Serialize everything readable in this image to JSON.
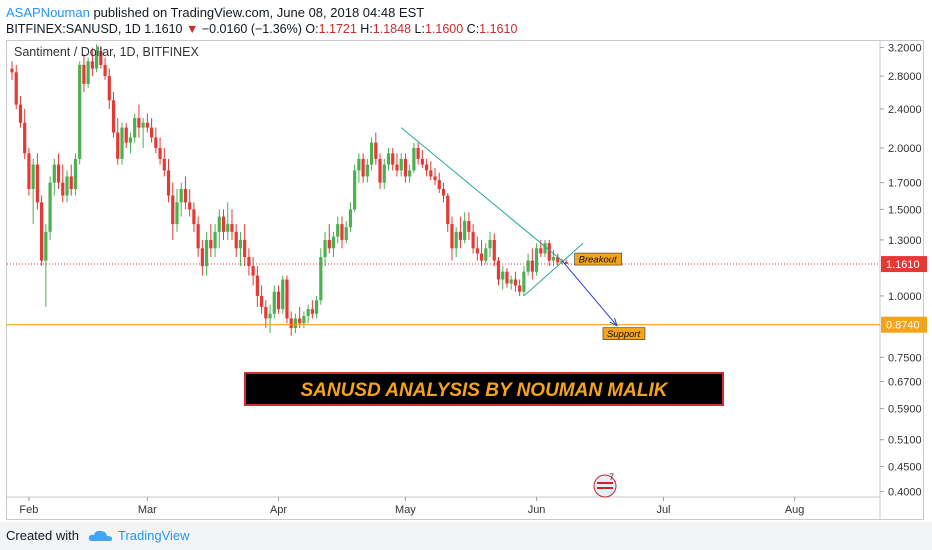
{
  "header": {
    "author": "ASAPNouman",
    "published": "published on TradingView.com, June 08, 2018 04:48 EST",
    "symbol": "BITFINEX:SANUSD, 1D",
    "last": "1.1610",
    "change": "−0.0160 (−1.36%)",
    "open_label": "O:",
    "open": "1.1721",
    "high_label": "H:",
    "high": "1.1848",
    "low_label": "L:",
    "low": "1.1600",
    "close_label": "C:",
    "close": "1.1610"
  },
  "footer": {
    "created_with": "Created with",
    "brand": "TradingView"
  },
  "colors": {
    "up": "#4caf50",
    "down": "#e53935",
    "trend": "#26a69a",
    "projection": "#2a3fd6",
    "support": "#f4a31c",
    "price_line": "#e53935",
    "banner_text": "#f4a31c",
    "banner_bg": "#000000",
    "banner_border": "#d32f2f"
  },
  "chart_data": {
    "type": "candlestick",
    "title": "Santiment / Dollar, 1D, BITFINEX",
    "y_scale": "log",
    "ylim": [
      0.39,
      3.3
    ],
    "y_ticks": [
      "3.2000",
      "2.8000",
      "2.4000",
      "2.0000",
      "1.7000",
      "1.5000",
      "1.3000",
      "1.1610",
      "1.0000",
      "0.8740",
      "0.7500",
      "0.6700",
      "0.5900",
      "0.5100",
      "0.4500",
      "0.4000"
    ],
    "x_ticks": [
      "Feb",
      "Mar",
      "Apr",
      "May",
      "Jun",
      "Jul",
      "Aug"
    ],
    "current_price": "1.1610",
    "support_level": "0.8740",
    "series": [
      {
        "date": "2018-01-28",
        "o": 2.9,
        "h": 3.0,
        "l": 2.75,
        "c": 2.85
      },
      {
        "date": "2018-01-29",
        "o": 2.85,
        "h": 2.95,
        "l": 2.4,
        "c": 2.45
      },
      {
        "date": "2018-01-30",
        "o": 2.45,
        "h": 2.55,
        "l": 2.2,
        "c": 2.25
      },
      {
        "date": "2018-01-31",
        "o": 2.25,
        "h": 2.4,
        "l": 1.9,
        "c": 1.95
      },
      {
        "date": "2018-02-01",
        "o": 1.95,
        "h": 2.0,
        "l": 1.6,
        "c": 1.65
      },
      {
        "date": "2018-02-02",
        "o": 1.65,
        "h": 1.9,
        "l": 1.4,
        "c": 1.85
      },
      {
        "date": "2018-02-03",
        "o": 1.85,
        "h": 1.95,
        "l": 1.5,
        "c": 1.55
      },
      {
        "date": "2018-02-04",
        "o": 1.55,
        "h": 1.6,
        "l": 1.15,
        "c": 1.18
      },
      {
        "date": "2018-02-05",
        "o": 1.18,
        "h": 1.4,
        "l": 0.95,
        "c": 1.35
      },
      {
        "date": "2018-02-06",
        "o": 1.35,
        "h": 1.75,
        "l": 1.3,
        "c": 1.7
      },
      {
        "date": "2018-02-07",
        "o": 1.7,
        "h": 1.9,
        "l": 1.6,
        "c": 1.85
      },
      {
        "date": "2018-02-08",
        "o": 1.85,
        "h": 1.95,
        "l": 1.65,
        "c": 1.7
      },
      {
        "date": "2018-02-09",
        "o": 1.7,
        "h": 1.85,
        "l": 1.55,
        "c": 1.6
      },
      {
        "date": "2018-02-10",
        "o": 1.6,
        "h": 1.8,
        "l": 1.55,
        "c": 1.75
      },
      {
        "date": "2018-02-11",
        "o": 1.75,
        "h": 1.85,
        "l": 1.6,
        "c": 1.65
      },
      {
        "date": "2018-02-12",
        "o": 1.65,
        "h": 1.95,
        "l": 1.6,
        "c": 1.9
      },
      {
        "date": "2018-02-13",
        "o": 1.9,
        "h": 3.0,
        "l": 1.85,
        "c": 2.95
      },
      {
        "date": "2018-02-14",
        "o": 2.95,
        "h": 3.1,
        "l": 2.6,
        "c": 2.7
      },
      {
        "date": "2018-02-15",
        "o": 2.7,
        "h": 3.05,
        "l": 2.65,
        "c": 3.0
      },
      {
        "date": "2018-02-16",
        "o": 3.0,
        "h": 3.2,
        "l": 2.8,
        "c": 2.9
      },
      {
        "date": "2018-02-17",
        "o": 2.9,
        "h": 3.25,
        "l": 2.85,
        "c": 3.15
      },
      {
        "date": "2018-02-18",
        "o": 3.15,
        "h": 3.2,
        "l": 2.9,
        "c": 2.95
      },
      {
        "date": "2018-02-19",
        "o": 2.95,
        "h": 3.05,
        "l": 2.75,
        "c": 2.8
      },
      {
        "date": "2018-02-20",
        "o": 2.8,
        "h": 2.9,
        "l": 2.4,
        "c": 2.5
      },
      {
        "date": "2018-02-21",
        "o": 2.5,
        "h": 2.6,
        "l": 2.1,
        "c": 2.15
      },
      {
        "date": "2018-02-22",
        "o": 2.15,
        "h": 2.3,
        "l": 1.85,
        "c": 1.9
      },
      {
        "date": "2018-02-23",
        "o": 1.9,
        "h": 2.25,
        "l": 1.85,
        "c": 2.2
      },
      {
        "date": "2018-02-24",
        "o": 2.2,
        "h": 2.25,
        "l": 2.0,
        "c": 2.05
      },
      {
        "date": "2018-02-25",
        "o": 2.05,
        "h": 2.15,
        "l": 1.95,
        "c": 2.1
      },
      {
        "date": "2018-02-26",
        "o": 2.1,
        "h": 2.35,
        "l": 2.05,
        "c": 2.3
      },
      {
        "date": "2018-02-27",
        "o": 2.3,
        "h": 2.45,
        "l": 2.1,
        "c": 2.2
      },
      {
        "date": "2018-02-28",
        "o": 2.2,
        "h": 2.3,
        "l": 2.0,
        "c": 2.25
      },
      {
        "date": "2018-03-01",
        "o": 2.25,
        "h": 2.35,
        "l": 2.15,
        "c": 2.2
      },
      {
        "date": "2018-03-02",
        "o": 2.2,
        "h": 2.3,
        "l": 2.05,
        "c": 2.1
      },
      {
        "date": "2018-03-03",
        "o": 2.1,
        "h": 2.2,
        "l": 1.95,
        "c": 2.0
      },
      {
        "date": "2018-03-04",
        "o": 2.0,
        "h": 2.1,
        "l": 1.85,
        "c": 1.9
      },
      {
        "date": "2018-03-05",
        "o": 1.9,
        "h": 2.0,
        "l": 1.75,
        "c": 1.8
      },
      {
        "date": "2018-03-06",
        "o": 1.8,
        "h": 1.9,
        "l": 1.55,
        "c": 1.6
      },
      {
        "date": "2018-03-07",
        "o": 1.6,
        "h": 1.7,
        "l": 1.3,
        "c": 1.4
      },
      {
        "date": "2018-03-08",
        "o": 1.4,
        "h": 1.65,
        "l": 1.35,
        "c": 1.55
      },
      {
        "date": "2018-03-09",
        "o": 1.55,
        "h": 1.7,
        "l": 1.45,
        "c": 1.65
      },
      {
        "date": "2018-03-10",
        "o": 1.65,
        "h": 1.75,
        "l": 1.5,
        "c": 1.55
      },
      {
        "date": "2018-03-11",
        "o": 1.55,
        "h": 1.65,
        "l": 1.45,
        "c": 1.5
      },
      {
        "date": "2018-03-12",
        "o": 1.5,
        "h": 1.55,
        "l": 1.35,
        "c": 1.4
      },
      {
        "date": "2018-03-13",
        "o": 1.4,
        "h": 1.45,
        "l": 1.2,
        "c": 1.25
      },
      {
        "date": "2018-03-14",
        "o": 1.25,
        "h": 1.3,
        "l": 1.1,
        "c": 1.15
      },
      {
        "date": "2018-03-15",
        "o": 1.15,
        "h": 1.35,
        "l": 1.1,
        "c": 1.3
      },
      {
        "date": "2018-03-16",
        "o": 1.3,
        "h": 1.4,
        "l": 1.2,
        "c": 1.25
      },
      {
        "date": "2018-03-17",
        "o": 1.25,
        "h": 1.4,
        "l": 1.2,
        "c": 1.35
      },
      {
        "date": "2018-03-18",
        "o": 1.35,
        "h": 1.5,
        "l": 1.25,
        "c": 1.45
      },
      {
        "date": "2018-03-19",
        "o": 1.45,
        "h": 1.5,
        "l": 1.3,
        "c": 1.35
      },
      {
        "date": "2018-03-20",
        "o": 1.35,
        "h": 1.55,
        "l": 1.3,
        "c": 1.4
      },
      {
        "date": "2018-03-21",
        "o": 1.4,
        "h": 1.5,
        "l": 1.3,
        "c": 1.35
      },
      {
        "date": "2018-03-22",
        "o": 1.35,
        "h": 1.4,
        "l": 1.2,
        "c": 1.25
      },
      {
        "date": "2018-03-23",
        "o": 1.25,
        "h": 1.35,
        "l": 1.15,
        "c": 1.3
      },
      {
        "date": "2018-03-24",
        "o": 1.3,
        "h": 1.4,
        "l": 1.15,
        "c": 1.2
      },
      {
        "date": "2018-03-25",
        "o": 1.2,
        "h": 1.25,
        "l": 1.1,
        "c": 1.15
      },
      {
        "date": "2018-03-26",
        "o": 1.15,
        "h": 1.2,
        "l": 1.05,
        "c": 1.1
      },
      {
        "date": "2018-03-27",
        "o": 1.1,
        "h": 1.15,
        "l": 0.95,
        "c": 1.0
      },
      {
        "date": "2018-03-28",
        "o": 1.0,
        "h": 1.05,
        "l": 0.92,
        "c": 0.95
      },
      {
        "date": "2018-03-29",
        "o": 0.95,
        "h": 0.98,
        "l": 0.86,
        "c": 0.9
      },
      {
        "date": "2018-03-30",
        "o": 0.9,
        "h": 0.96,
        "l": 0.84,
        "c": 0.92
      },
      {
        "date": "2018-03-31",
        "o": 0.92,
        "h": 1.05,
        "l": 0.9,
        "c": 1.02
      },
      {
        "date": "2018-04-01",
        "o": 1.02,
        "h": 1.05,
        "l": 0.92,
        "c": 0.94
      },
      {
        "date": "2018-04-02",
        "o": 0.94,
        "h": 1.1,
        "l": 0.92,
        "c": 1.08
      },
      {
        "date": "2018-04-03",
        "o": 1.08,
        "h": 1.1,
        "l": 0.88,
        "c": 0.9
      },
      {
        "date": "2018-04-04",
        "o": 0.9,
        "h": 0.93,
        "l": 0.83,
        "c": 0.86
      },
      {
        "date": "2018-04-05",
        "o": 0.86,
        "h": 0.92,
        "l": 0.84,
        "c": 0.9
      },
      {
        "date": "2018-04-06",
        "o": 0.9,
        "h": 0.95,
        "l": 0.86,
        "c": 0.88
      },
      {
        "date": "2018-04-07",
        "o": 0.88,
        "h": 0.93,
        "l": 0.86,
        "c": 0.91
      },
      {
        "date": "2018-04-08",
        "o": 0.91,
        "h": 0.96,
        "l": 0.88,
        "c": 0.94
      },
      {
        "date": "2018-04-09",
        "o": 0.94,
        "h": 0.98,
        "l": 0.9,
        "c": 0.92
      },
      {
        "date": "2018-04-10",
        "o": 0.92,
        "h": 1.0,
        "l": 0.9,
        "c": 0.98
      },
      {
        "date": "2018-04-11",
        "o": 0.98,
        "h": 1.25,
        "l": 0.96,
        "c": 1.2
      },
      {
        "date": "2018-04-12",
        "o": 1.2,
        "h": 1.35,
        "l": 1.15,
        "c": 1.3
      },
      {
        "date": "2018-04-13",
        "o": 1.3,
        "h": 1.4,
        "l": 1.22,
        "c": 1.25
      },
      {
        "date": "2018-04-14",
        "o": 1.25,
        "h": 1.35,
        "l": 1.2,
        "c": 1.32
      },
      {
        "date": "2018-04-15",
        "o": 1.32,
        "h": 1.45,
        "l": 1.28,
        "c": 1.4
      },
      {
        "date": "2018-04-16",
        "o": 1.4,
        "h": 1.45,
        "l": 1.25,
        "c": 1.3
      },
      {
        "date": "2018-04-17",
        "o": 1.3,
        "h": 1.42,
        "l": 1.28,
        "c": 1.38
      },
      {
        "date": "2018-04-18",
        "o": 1.38,
        "h": 1.55,
        "l": 1.35,
        "c": 1.5
      },
      {
        "date": "2018-04-19",
        "o": 1.5,
        "h": 1.85,
        "l": 1.48,
        "c": 1.8
      },
      {
        "date": "2018-04-20",
        "o": 1.8,
        "h": 1.95,
        "l": 1.7,
        "c": 1.9
      },
      {
        "date": "2018-04-21",
        "o": 1.9,
        "h": 1.95,
        "l": 1.7,
        "c": 1.75
      },
      {
        "date": "2018-04-22",
        "o": 1.75,
        "h": 1.9,
        "l": 1.7,
        "c": 1.85
      },
      {
        "date": "2018-04-23",
        "o": 1.85,
        "h": 2.1,
        "l": 1.8,
        "c": 2.05
      },
      {
        "date": "2018-04-24",
        "o": 2.05,
        "h": 2.15,
        "l": 1.85,
        "c": 1.9
      },
      {
        "date": "2018-04-25",
        "o": 1.9,
        "h": 1.95,
        "l": 1.65,
        "c": 1.7
      },
      {
        "date": "2018-04-26",
        "o": 1.7,
        "h": 1.9,
        "l": 1.65,
        "c": 1.85
      },
      {
        "date": "2018-04-27",
        "o": 1.85,
        "h": 2.0,
        "l": 1.8,
        "c": 1.95
      },
      {
        "date": "2018-04-28",
        "o": 1.95,
        "h": 2.0,
        "l": 1.8,
        "c": 1.85
      },
      {
        "date": "2018-04-29",
        "o": 1.85,
        "h": 1.95,
        "l": 1.75,
        "c": 1.8
      },
      {
        "date": "2018-04-30",
        "o": 1.8,
        "h": 1.95,
        "l": 1.75,
        "c": 1.9
      },
      {
        "date": "2018-05-01",
        "o": 1.9,
        "h": 1.95,
        "l": 1.7,
        "c": 1.75
      },
      {
        "date": "2018-05-02",
        "o": 1.75,
        "h": 1.85,
        "l": 1.7,
        "c": 1.8
      },
      {
        "date": "2018-05-03",
        "o": 1.8,
        "h": 2.05,
        "l": 1.78,
        "c": 2.0
      },
      {
        "date": "2018-05-04",
        "o": 2.0,
        "h": 2.05,
        "l": 1.85,
        "c": 1.9
      },
      {
        "date": "2018-05-05",
        "o": 1.9,
        "h": 1.98,
        "l": 1.82,
        "c": 1.85
      },
      {
        "date": "2018-05-06",
        "o": 1.85,
        "h": 1.9,
        "l": 1.75,
        "c": 1.8
      },
      {
        "date": "2018-05-07",
        "o": 1.8,
        "h": 1.88,
        "l": 1.72,
        "c": 1.75
      },
      {
        "date": "2018-05-08",
        "o": 1.75,
        "h": 1.82,
        "l": 1.68,
        "c": 1.72
      },
      {
        "date": "2018-05-09",
        "o": 1.72,
        "h": 1.78,
        "l": 1.62,
        "c": 1.65
      },
      {
        "date": "2018-05-10",
        "o": 1.65,
        "h": 1.7,
        "l": 1.55,
        "c": 1.6
      },
      {
        "date": "2018-05-11",
        "o": 1.6,
        "h": 1.62,
        "l": 1.35,
        "c": 1.4
      },
      {
        "date": "2018-05-12",
        "o": 1.4,
        "h": 1.45,
        "l": 1.18,
        "c": 1.25
      },
      {
        "date": "2018-05-13",
        "o": 1.25,
        "h": 1.38,
        "l": 1.2,
        "c": 1.35
      },
      {
        "date": "2018-05-14",
        "o": 1.35,
        "h": 1.45,
        "l": 1.25,
        "c": 1.3
      },
      {
        "date": "2018-05-15",
        "o": 1.3,
        "h": 1.48,
        "l": 1.28,
        "c": 1.42
      },
      {
        "date": "2018-05-16",
        "o": 1.42,
        "h": 1.48,
        "l": 1.3,
        "c": 1.35
      },
      {
        "date": "2018-05-17",
        "o": 1.35,
        "h": 1.4,
        "l": 1.22,
        "c": 1.25
      },
      {
        "date": "2018-05-18",
        "o": 1.25,
        "h": 1.32,
        "l": 1.18,
        "c": 1.22
      },
      {
        "date": "2018-05-19",
        "o": 1.22,
        "h": 1.3,
        "l": 1.15,
        "c": 1.18
      },
      {
        "date": "2018-05-20",
        "o": 1.18,
        "h": 1.28,
        "l": 1.16,
        "c": 1.25
      },
      {
        "date": "2018-05-21",
        "o": 1.25,
        "h": 1.35,
        "l": 1.2,
        "c": 1.3
      },
      {
        "date": "2018-05-22",
        "o": 1.3,
        "h": 1.34,
        "l": 1.15,
        "c": 1.18
      },
      {
        "date": "2018-05-23",
        "o": 1.18,
        "h": 1.2,
        "l": 1.05,
        "c": 1.08
      },
      {
        "date": "2018-05-24",
        "o": 1.08,
        "h": 1.15,
        "l": 1.03,
        "c": 1.12
      },
      {
        "date": "2018-05-25",
        "o": 1.12,
        "h": 1.14,
        "l": 1.04,
        "c": 1.06
      },
      {
        "date": "2018-05-26",
        "o": 1.06,
        "h": 1.1,
        "l": 1.03,
        "c": 1.08
      },
      {
        "date": "2018-05-27",
        "o": 1.08,
        "h": 1.12,
        "l": 1.02,
        "c": 1.05
      },
      {
        "date": "2018-05-28",
        "o": 1.05,
        "h": 1.08,
        "l": 1.0,
        "c": 1.02
      },
      {
        "date": "2018-05-29",
        "o": 1.02,
        "h": 1.15,
        "l": 1.0,
        "c": 1.12
      },
      {
        "date": "2018-05-30",
        "o": 1.12,
        "h": 1.22,
        "l": 1.1,
        "c": 1.18
      },
      {
        "date": "2018-05-31",
        "o": 1.18,
        "h": 1.25,
        "l": 1.08,
        "c": 1.12
      },
      {
        "date": "2018-06-01",
        "o": 1.12,
        "h": 1.28,
        "l": 1.1,
        "c": 1.25
      },
      {
        "date": "2018-06-02",
        "o": 1.25,
        "h": 1.3,
        "l": 1.2,
        "c": 1.22
      },
      {
        "date": "2018-06-03",
        "o": 1.22,
        "h": 1.3,
        "l": 1.2,
        "c": 1.28
      },
      {
        "date": "2018-06-04",
        "o": 1.28,
        "h": 1.3,
        "l": 1.15,
        "c": 1.18
      },
      {
        "date": "2018-06-05",
        "o": 1.18,
        "h": 1.24,
        "l": 1.15,
        "c": 1.2
      },
      {
        "date": "2018-06-06",
        "o": 1.2,
        "h": 1.22,
        "l": 1.15,
        "c": 1.17
      },
      {
        "date": "2018-06-07",
        "o": 1.17,
        "h": 1.19,
        "l": 1.16,
        "c": 1.18
      },
      {
        "date": "2018-06-08",
        "o": 1.1721,
        "h": 1.1848,
        "l": 1.16,
        "c": 1.161
      }
    ],
    "annotations": {
      "breakout_label": "Breakout",
      "support_label": "Support",
      "banner": "SANUSD ANALYSIS BY NOUMAN MALIK",
      "badge_text": "7",
      "resistance_line": [
        [
          "2018-04-30",
          2.2
        ],
        [
          "2018-06-07",
          1.18
        ]
      ],
      "support_trend": [
        [
          "2018-05-29",
          1.0
        ],
        [
          "2018-06-12",
          1.28
        ]
      ],
      "projection": [
        [
          "2018-06-07",
          1.18
        ],
        [
          "2018-06-20",
          0.87
        ]
      ]
    }
  }
}
